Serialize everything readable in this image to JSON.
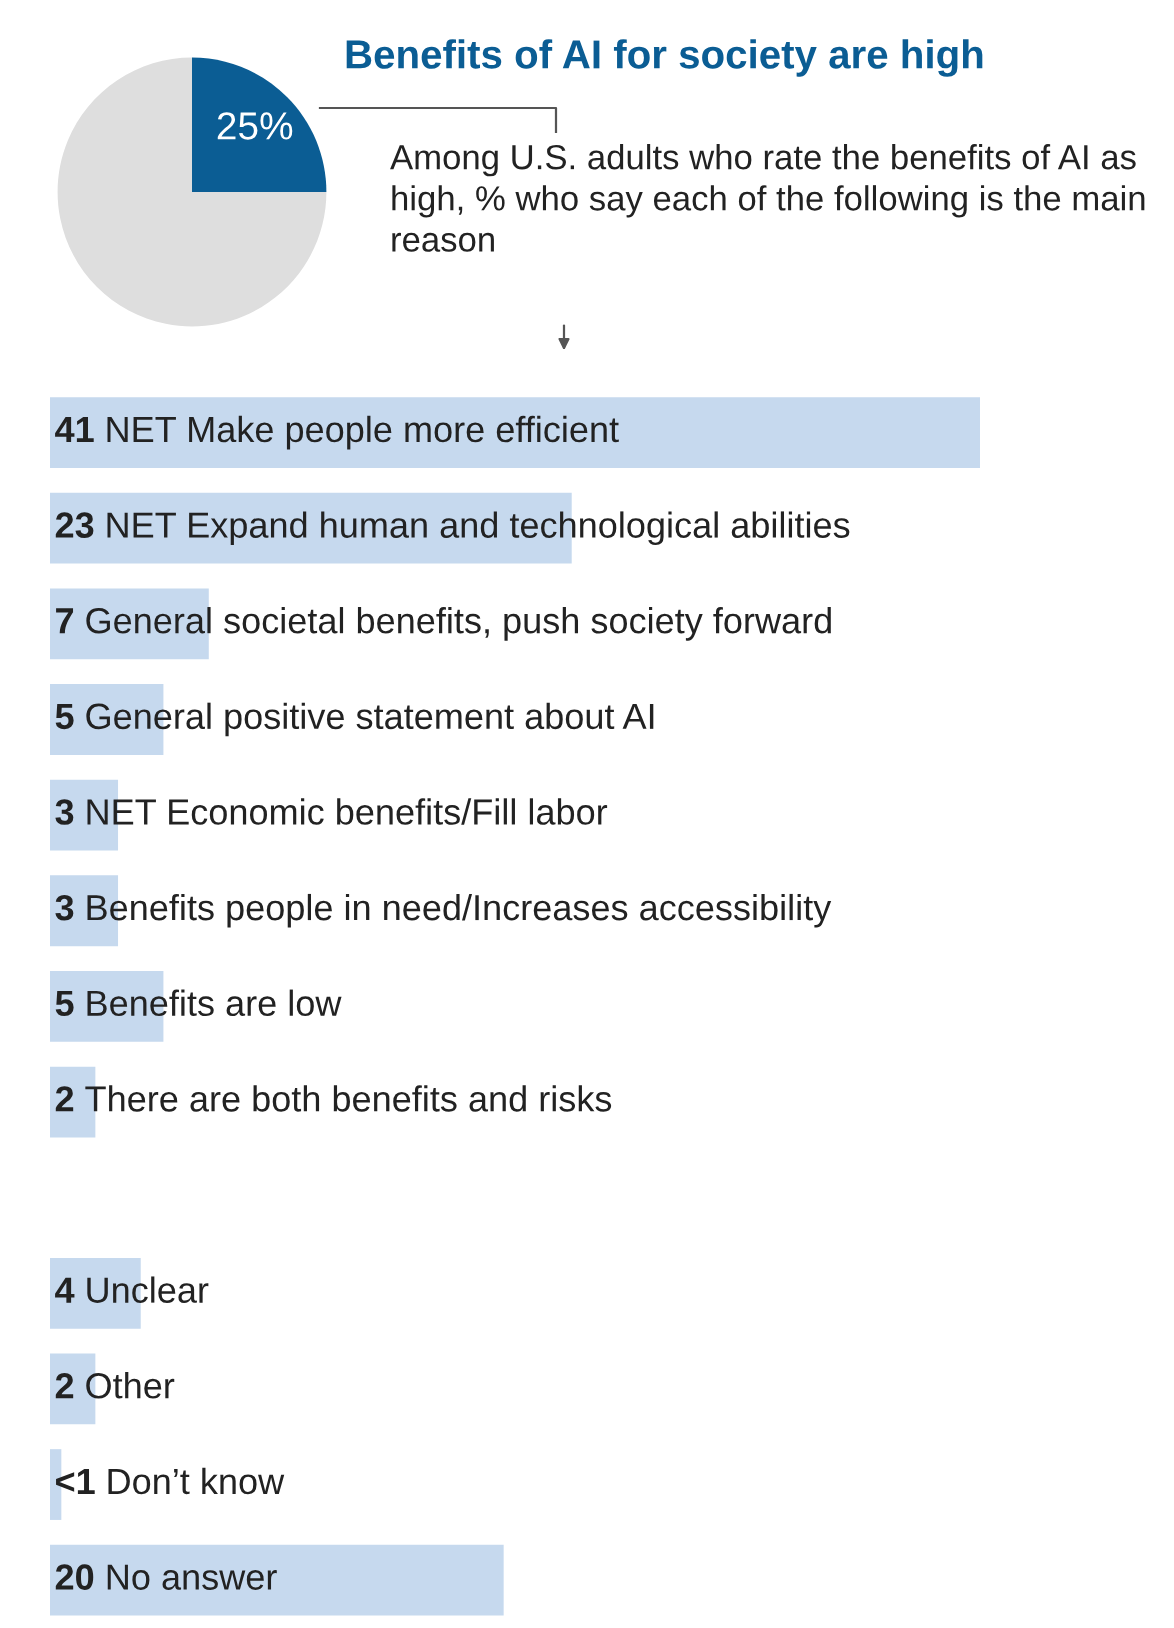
{
  "chart_data": [
    {
      "type": "pie",
      "title": "Benefits of AI for society are high",
      "categories": [
        null,
        null
      ],
      "values": [
        25,
        75
      ],
      "colors": [
        "#0b5d94",
        "#dedede"
      ],
      "value_labels": [
        "25%",
        null
      ]
    },
    {
      "type": "bar",
      "orientation": "horizontal",
      "title": "Among U.S. adults who rate the benefits of AI as high, % who say each of the following is the main reason",
      "categories": [
        "NET Make people more efficient",
        "NET Expand human and technological abilities",
        "General societal benefits, push society forward",
        "General positive statement about AI",
        "NET Economic benefits/Fill labor",
        "Benefits people in need/Increases accessibility",
        "Benefits are low",
        "There are both benefits and risks",
        null,
        "Unclear",
        "Other",
        "Don’t know",
        "No answer"
      ],
      "values": [
        41,
        23,
        7,
        5,
        3,
        3,
        5,
        2,
        null,
        4,
        2,
        0.5,
        20
      ],
      "value_labels": [
        "41",
        "23",
        "7",
        "5",
        "3",
        "3",
        "5",
        "2",
        null,
        "4",
        "2",
        "<1",
        "20"
      ],
      "color": "#c6d9ee"
    }
  ]
}
